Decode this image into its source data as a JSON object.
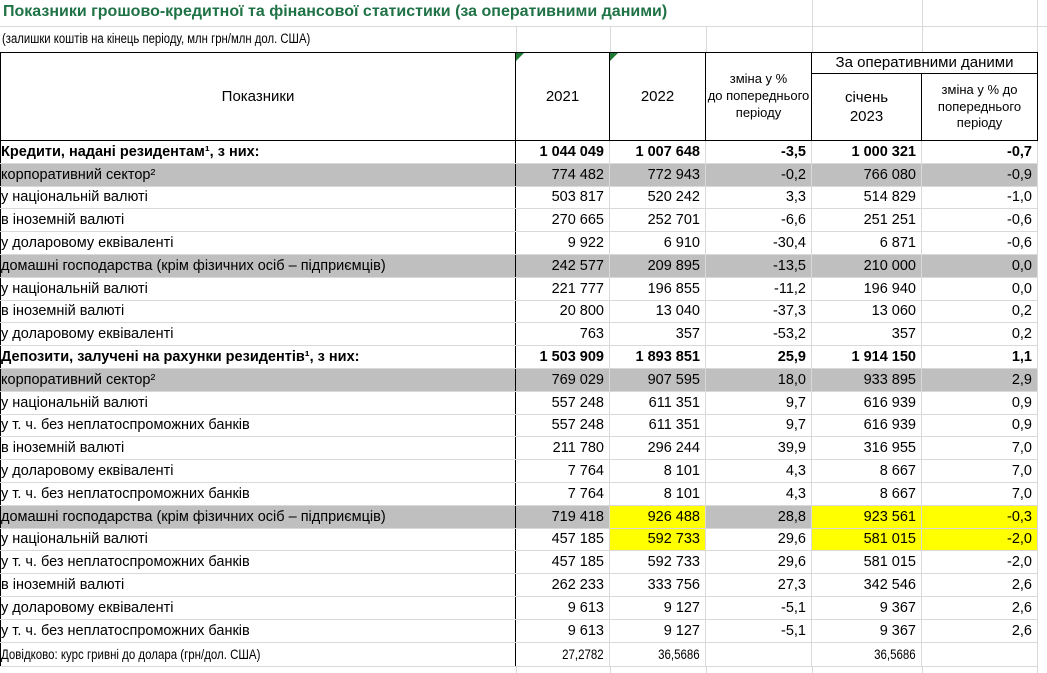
{
  "title": "Показники грошово-кредитної та фінансової статистики (за оперативними даними)",
  "subtitle": "(залишки коштів на кінець періоду, млн грн/млн дол. США)",
  "colors": {
    "title_green": "#1F7246",
    "comment_marker_green": "#1F7A33",
    "highlight_yellow": "#FFFF00",
    "row_shade_gray": "#BFBFBF",
    "gridline_gray": "#D9D9D9"
  },
  "table": {
    "header": {
      "indicators": "Показники",
      "col_2021": "2021",
      "col_2022": "2022",
      "col_change": "зміна у %\nдо попереднього\nперіоду",
      "operational_group": "За оперативними даними",
      "col_january": "січень\n2023",
      "col_change_operational": "зміна у % до\nпопереднього\nперіоду"
    },
    "rows": [
      {
        "label": "Кредити, надані резидентам¹, з них:",
        "indent": 0,
        "bold": true,
        "values": [
          "1 044 049",
          "1 007 648",
          "-3,5",
          "1 000 321",
          "-0,7"
        ]
      },
      {
        "label": "корпоративний сектор²",
        "indent": 1,
        "shaded": true,
        "values": [
          "774 482",
          "772 943",
          "-0,2",
          "766 080",
          "-0,9"
        ]
      },
      {
        "label": "у національній валюті",
        "indent": 2,
        "values": [
          "503 817",
          "520 242",
          "3,3",
          "514 829",
          "-1,0"
        ]
      },
      {
        "label": "в іноземній валюті",
        "indent": 2,
        "values": [
          "270 665",
          "252 701",
          "-6,6",
          "251 251",
          "-0,6"
        ]
      },
      {
        "label": "у доларовому еквіваленті",
        "indent": 3,
        "values": [
          "9 922",
          "6 910",
          "-30,4",
          "6 871",
          "-0,6"
        ]
      },
      {
        "label": "домашні господарства (крім фізичних осіб – підприємців)",
        "indent": 1,
        "shaded": true,
        "values": [
          "242 577",
          "209 895",
          "-13,5",
          "210 000",
          "0,0"
        ]
      },
      {
        "label": "у національній валюті",
        "indent": 2,
        "values": [
          "221 777",
          "196 855",
          "-11,2",
          "196 940",
          "0,0"
        ]
      },
      {
        "label": "в іноземній валюті",
        "indent": 2,
        "values": [
          "20 800",
          "13 040",
          "-37,3",
          "13 060",
          "0,2"
        ]
      },
      {
        "label": "у доларовому еквіваленті",
        "indent": 3,
        "values": [
          "763",
          "357",
          "-53,2",
          "357",
          "0,2"
        ]
      },
      {
        "label": "Депозити, залучені на рахунки резидентів¹, з них:",
        "indent": 0,
        "bold": true,
        "section_start": true,
        "values": [
          "1 503 909",
          "1 893 851",
          "25,9",
          "1 914 150",
          "1,1"
        ]
      },
      {
        "label": "корпоративний сектор²",
        "indent": 1,
        "shaded": true,
        "values": [
          "769 029",
          "907 595",
          "18,0",
          "933 895",
          "2,9"
        ]
      },
      {
        "label": "у національній валюті",
        "indent": 2,
        "values": [
          "557 248",
          "611 351",
          "9,7",
          "616 939",
          "0,9"
        ]
      },
      {
        "label": "у т. ч. без неплатоспроможних банків",
        "indent": 4,
        "values": [
          "557 248",
          "611 351",
          "9,7",
          "616 939",
          "0,9"
        ]
      },
      {
        "label": "в іноземній валюті",
        "indent": 2,
        "values": [
          "211 780",
          "296 244",
          "39,9",
          "316 955",
          "7,0"
        ]
      },
      {
        "label": "у доларовому еквіваленті",
        "indent": 3,
        "values": [
          "7 764",
          "8 101",
          "4,3",
          "8 667",
          "7,0"
        ]
      },
      {
        "label": "у т. ч. без неплатоспроможних банків",
        "indent": 4,
        "values": [
          "7 764",
          "8 101",
          "4,3",
          "8 667",
          "7,0"
        ]
      },
      {
        "label": "домашні господарства (крім фізичних осіб – підприємців)",
        "indent": 1,
        "shaded": true,
        "yellow_cells": [
          1,
          3,
          4
        ],
        "values": [
          "719 418",
          "926 488",
          "28,8",
          "923 561",
          "-0,3"
        ]
      },
      {
        "label": "у національній валюті",
        "indent": 2,
        "yellow_cells": [
          1,
          3,
          4
        ],
        "values": [
          "457 185",
          "592 733",
          "29,6",
          "581 015",
          "-2,0"
        ]
      },
      {
        "label": "у т. ч. без неплатоспроможних банків",
        "indent": 4,
        "values": [
          "457 185",
          "592 733",
          "29,6",
          "581 015",
          "-2,0"
        ]
      },
      {
        "label": "в іноземній валюті",
        "indent": 2,
        "values": [
          "262 233",
          "333 756",
          "27,3",
          "342 546",
          "2,6"
        ]
      },
      {
        "label": "у доларовому еквіваленті",
        "indent": 3,
        "values": [
          "9 613",
          "9 127",
          "-5,1",
          "9 367",
          "2,6"
        ]
      },
      {
        "label": "у т. ч. без неплатоспроможних банків",
        "indent": 4,
        "values": [
          "9 613",
          "9 127",
          "-5,1",
          "9 367",
          "2,6"
        ]
      },
      {
        "label": "Довідково: курс гривні до долара (грн/дол. США)",
        "indent": 0,
        "narrow": true,
        "section_start": true,
        "values": [
          "27,2782",
          "36,5686",
          "",
          "36,5686",
          ""
        ]
      }
    ]
  }
}
